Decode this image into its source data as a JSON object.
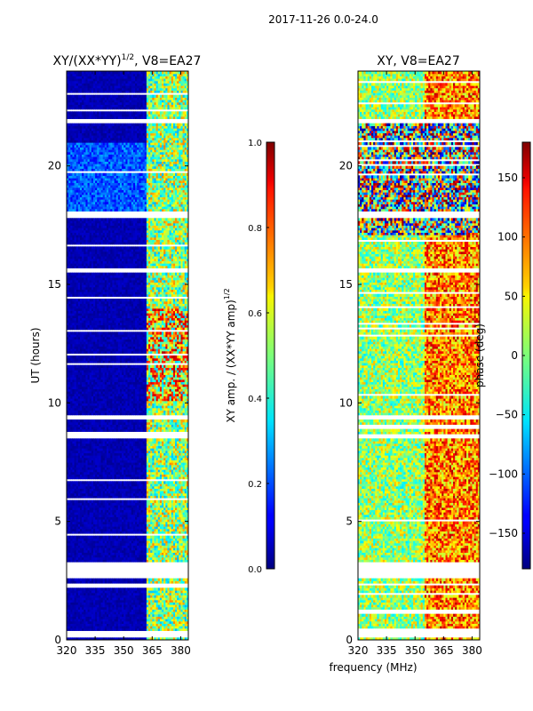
{
  "suptitle": "2017-11-26 0.0-24.0",
  "colors": {
    "background": "#ffffff",
    "axis": "#000000",
    "dark_blue": "#00007f",
    "gap": "#ffffff"
  },
  "chart_data": [
    {
      "type": "heatmap",
      "title": "XY/(XX*YY)1/2, V8=EA27",
      "title_main": "XY/(XX*YY)",
      "title_sup": "1/2",
      "title_tail": ", V8=EA27",
      "ylabel": "UT (hours)",
      "xlabel": "",
      "xlim": [
        320,
        384
      ],
      "ylim": [
        0,
        24
      ],
      "xticks": [
        320,
        335,
        350,
        365,
        380
      ],
      "xtick_labels": [
        "320",
        "335",
        "350",
        "365",
        "380"
      ],
      "yticks": [
        0,
        5,
        10,
        15,
        20
      ],
      "ytick_labels": [
        "0",
        "5",
        "10",
        "15",
        "20"
      ],
      "colormap": "jet",
      "zlim": [
        0.0,
        1.0
      ],
      "colorbar": {
        "label": "XY amp. / (XX*YY amp)1/2",
        "label_main": "XY amp. / (XX*YY amp)",
        "label_sup": "1/2",
        "ticks": [
          0.0,
          0.2,
          0.4,
          0.6,
          0.8,
          1.0
        ],
        "tick_labels": [
          "0.0",
          "0.2",
          "0.4",
          "0.6",
          "0.8",
          "1.0"
        ]
      },
      "description_bands_MHz": [
        [
          362,
          383
        ]
      ],
      "gap_hours": [
        [
          0.1,
          0.4
        ],
        [
          2.6,
          3.3
        ],
        [
          17.8,
          18.1
        ],
        [
          21.8,
          22.0
        ],
        [
          15.5,
          15.7
        ],
        [
          9.3,
          9.5
        ],
        [
          8.5,
          8.7
        ]
      ]
    },
    {
      "type": "heatmap",
      "title": "XY, V8=EA27",
      "ylabel": "",
      "xlabel": "frequency (MHz)",
      "xlim": [
        320,
        384
      ],
      "ylim": [
        0,
        24
      ],
      "xticks": [
        320,
        335,
        350,
        365,
        380
      ],
      "xtick_labels": [
        "320",
        "335",
        "350",
        "365",
        "380"
      ],
      "yticks": [
        0,
        5,
        10,
        15,
        20
      ],
      "ytick_labels": [
        "0",
        "5",
        "10",
        "15",
        "20"
      ],
      "colormap": "jet",
      "zlim": [
        -180,
        180
      ],
      "colorbar": {
        "label": "phase (deg)",
        "ticks": [
          -150,
          -100,
          -50,
          0,
          50,
          100,
          150
        ],
        "tick_labels": [
          "−150",
          "−100",
          "−50",
          "0",
          "50",
          "100",
          "150"
        ]
      },
      "gap_hours": [
        [
          0.1,
          0.4
        ],
        [
          2.6,
          3.3
        ],
        [
          17.8,
          18.1
        ],
        [
          21.8,
          22.0
        ],
        [
          15.5,
          15.7
        ],
        [
          9.3,
          9.5
        ],
        [
          8.5,
          8.7
        ]
      ]
    }
  ]
}
